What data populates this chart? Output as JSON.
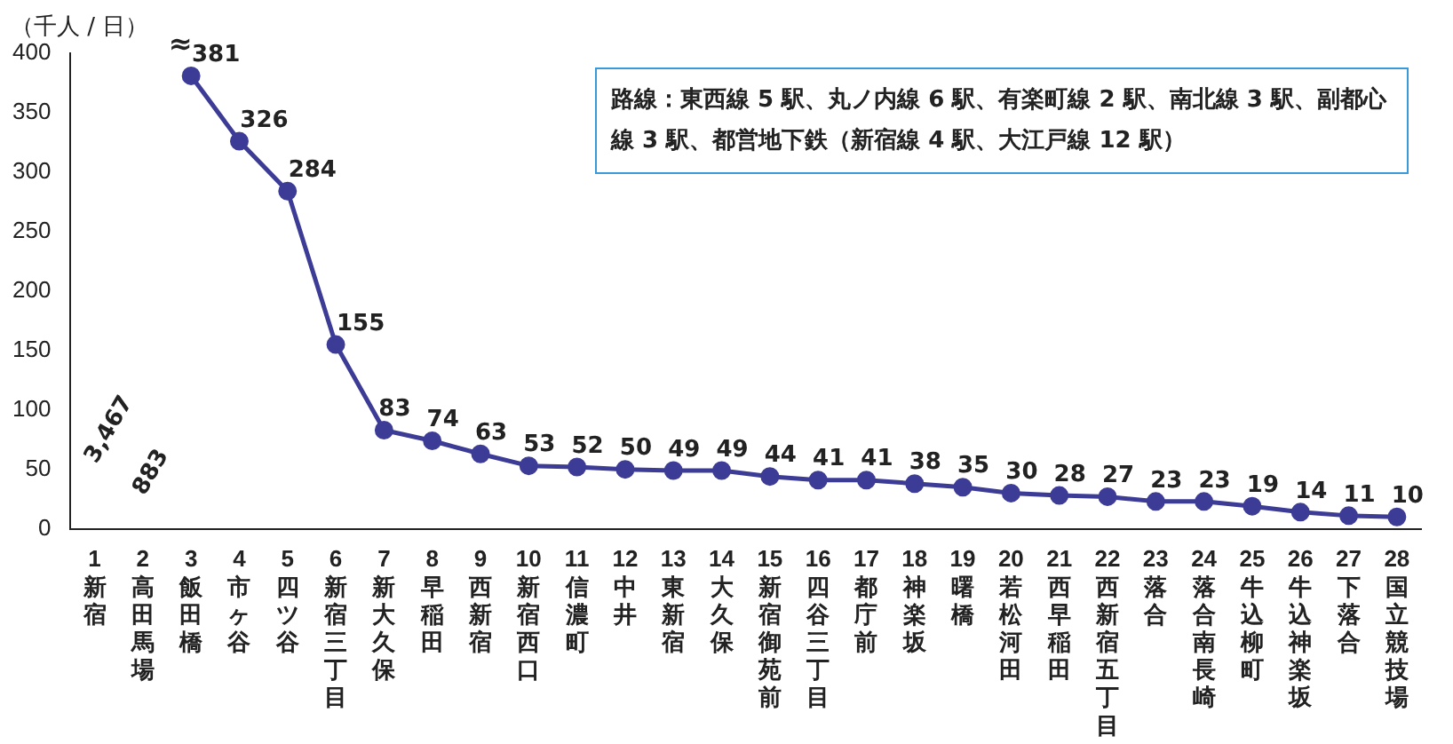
{
  "chart_data": {
    "type": "line",
    "ylabel": "（千人 / 日）",
    "categories": [
      "1 新宿",
      "2 高田馬場",
      "3 飯田橋",
      "4 市ヶ谷",
      "5 四ツ谷",
      "6 新宿三丁目",
      "7 新大久保",
      "8 早稲田",
      "9 西新宿",
      "10 新宿西口",
      "11 信濃町",
      "12 中井",
      "13 東新宿",
      "14 大久保",
      "15 新宿御苑前",
      "16 四谷三丁目",
      "17 都庁前",
      "18 神楽坂",
      "19 曙橋",
      "20 若松河田",
      "21 西早稲田",
      "22 西新宿五丁目",
      "23 落合",
      "24 落合南長崎",
      "25 牛込柳町",
      "26 牛込神楽坂",
      "27 下落合",
      "28 国立競技場"
    ],
    "series": [
      {
        "color": "#3c3c96",
        "values": [
          null,
          null,
          381,
          326,
          284,
          155,
          83,
          74,
          63,
          53,
          52,
          50,
          49,
          49,
          44,
          41,
          41,
          38,
          35,
          30,
          28,
          27,
          23,
          23,
          19,
          14,
          11,
          10
        ]
      }
    ],
    "ylim": [
      0,
      400
    ],
    "yticks": [
      0,
      50,
      100,
      150,
      200,
      250,
      300,
      350,
      400
    ],
    "grid": false,
    "legend": false,
    "marker": "circle",
    "data_labels": true,
    "annotations": [
      "3,467",
      "883",
      "≈",
      "路線：東西線 5 駅、丸ノ内線 6 駅、有楽町線 2 駅、南北線 3 駅、副都心線 3 駅、都営地下鉄（新宿線 4 駅、大江戸線 12 駅）"
    ]
  }
}
